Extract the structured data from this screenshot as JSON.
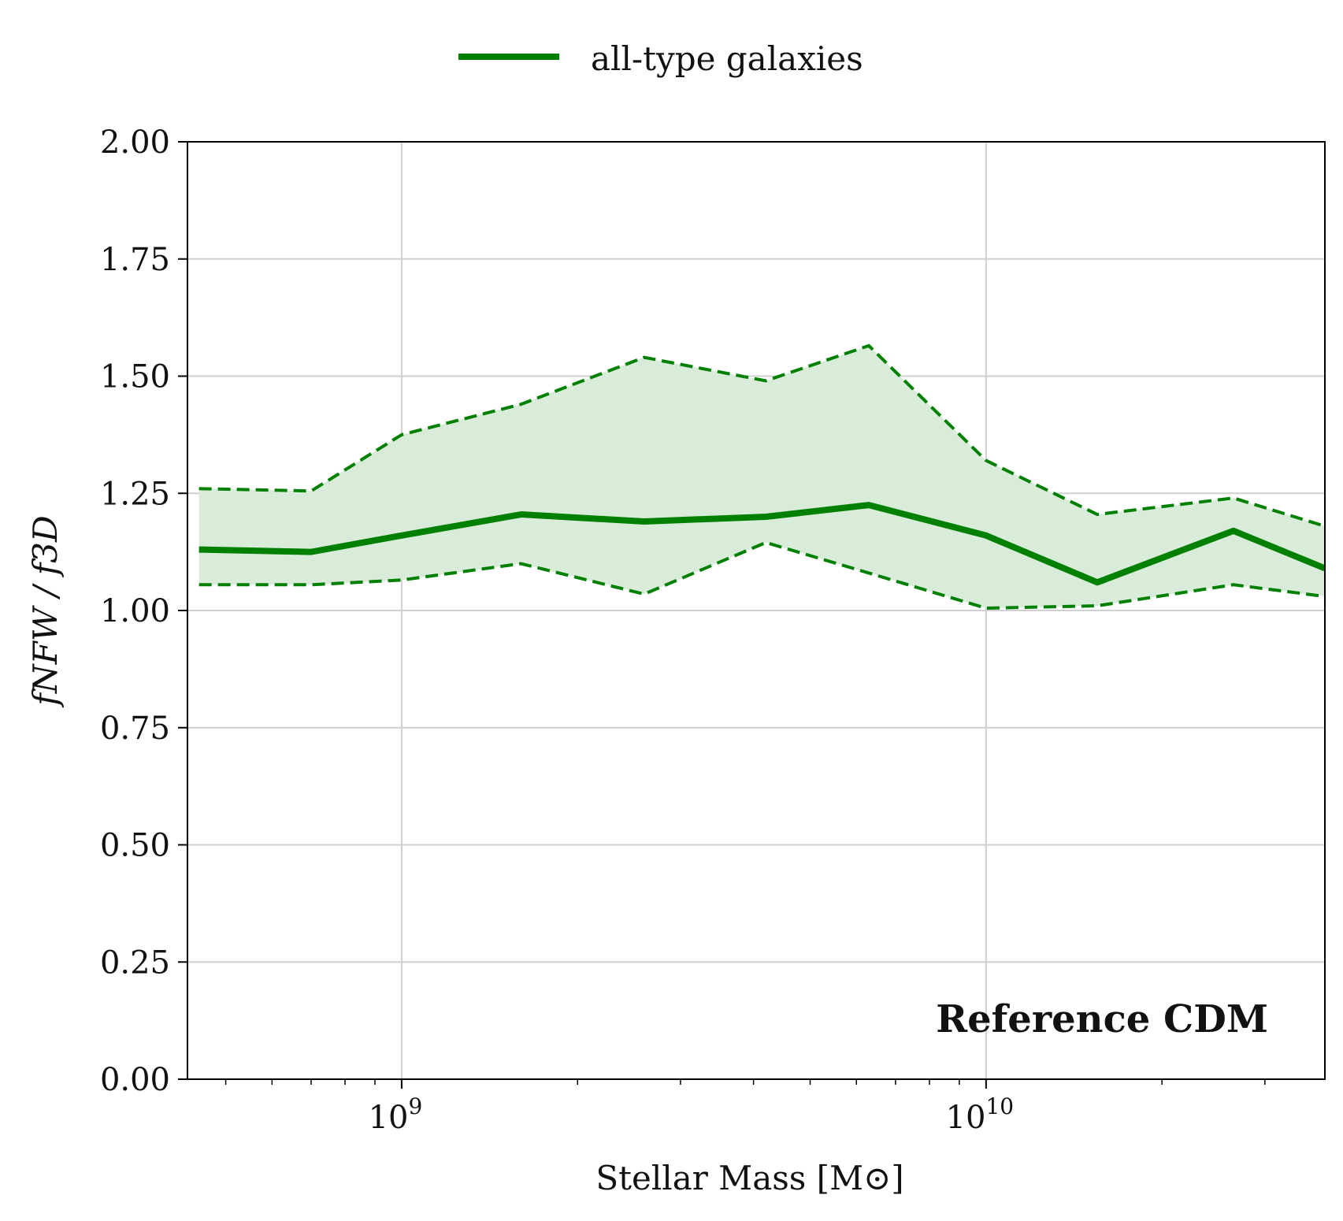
{
  "chart_data": {
    "type": "line",
    "xscale": "log",
    "xlim": [
      430000000,
      38000000000
    ],
    "ylim": [
      0.0,
      2.0
    ],
    "xlabel": "Stellar Mass [M⊙]",
    "ylabel": "fNFW / f3D",
    "xticks": [
      {
        "value": 1000000000,
        "base": "10",
        "exp": "9"
      },
      {
        "value": 10000000000,
        "base": "10",
        "exp": "10"
      }
    ],
    "yticks": [
      "0.00",
      "0.25",
      "0.50",
      "0.75",
      "1.00",
      "1.25",
      "1.50",
      "1.75",
      "2.00"
    ],
    "grid": true,
    "legend_position": "top-center",
    "annotation": "Reference CDM",
    "x": [
      450000000,
      700000000,
      1000000000,
      1600000000,
      2600000000,
      4200000000,
      6300000000,
      10000000000,
      15500000000,
      26500000000,
      38000000000
    ],
    "series": [
      {
        "name": "all-type galaxies",
        "style": "solid",
        "values": [
          1.13,
          1.125,
          1.16,
          1.205,
          1.19,
          1.2,
          1.225,
          1.16,
          1.06,
          1.17,
          1.09
        ]
      },
      {
        "name": "",
        "style": "dashed-upper",
        "values": [
          1.26,
          1.255,
          1.375,
          1.44,
          1.54,
          1.49,
          1.565,
          1.32,
          1.205,
          1.24,
          1.18
        ]
      },
      {
        "name": "",
        "style": "dashed-lower",
        "values": [
          1.055,
          1.055,
          1.065,
          1.1,
          1.035,
          1.145,
          1.08,
          1.005,
          1.01,
          1.055,
          1.03
        ]
      }
    ],
    "colors": {
      "line": "#008000",
      "band": "#d9ecd9",
      "grid": "#d0d0d0"
    }
  }
}
